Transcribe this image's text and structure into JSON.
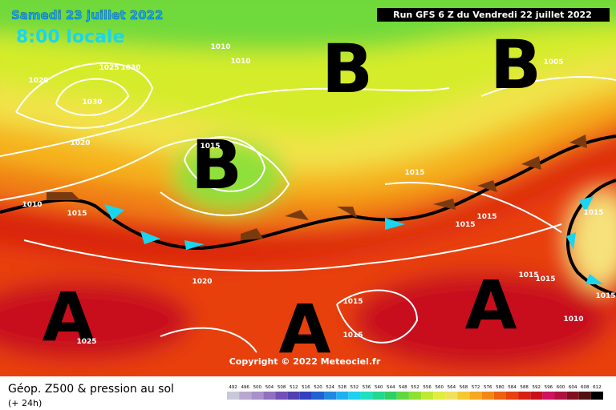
{
  "header": {
    "date": "Samedi 23 juillet 2022",
    "time": "8:00 locale",
    "run": "Run GFS 6 Z du Vendredi 22 juillet 2022"
  },
  "map": {
    "lows": [
      "B",
      "B",
      "B"
    ],
    "highs": [
      "A",
      "A",
      "A"
    ],
    "isobar_labels": [
      1025,
      1030,
      1020,
      1030,
      1020,
      1010,
      1010,
      1005,
      1015,
      1010,
      1015,
      1015,
      1015,
      1015,
      1015,
      1020,
      1015,
      1015,
      1015,
      1015,
      1015,
      1010,
      1025
    ],
    "copyright": "Copyright © 2022 Meteociel.fr"
  },
  "legend": {
    "title": "Géop. Z500 & pression au sol",
    "subtitle": "(+ 24h)",
    "levels": [
      492,
      496,
      500,
      504,
      508,
      512,
      516,
      520,
      524,
      528,
      532,
      536,
      540,
      544,
      548,
      552,
      556,
      560,
      564,
      568,
      572,
      576,
      580,
      584,
      588,
      592,
      596,
      600,
      604,
      608,
      612
    ]
  }
}
